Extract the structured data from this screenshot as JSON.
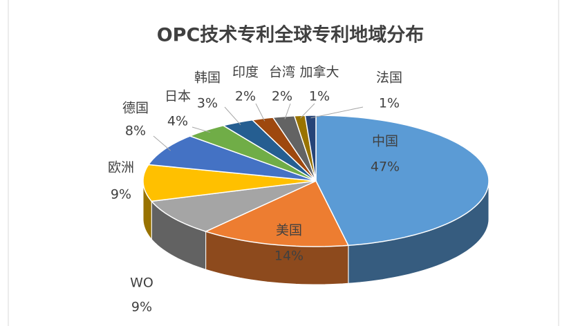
{
  "chart_data": {
    "type": "pie3d",
    "title": "OPC技术专利全球专利地域分布",
    "categories": [
      "中国",
      "美国",
      "WO",
      "欧洲",
      "德国",
      "日本",
      "韩国",
      "印度",
      "台湾",
      "加拿大",
      "法国"
    ],
    "values": [
      47,
      14,
      9,
      9,
      8,
      4,
      3,
      2,
      2,
      1,
      1
    ],
    "value_labels": [
      "47%",
      "14%",
      "9%",
      "9%",
      "8%",
      "4%",
      "3%",
      "2%",
      "2%",
      "1%",
      "1%"
    ],
    "colors": [
      "#5b9bd5",
      "#ed7d31",
      "#a5a5a5",
      "#ffc000",
      "#4472c4",
      "#70ad47",
      "#255e91",
      "#9e480e",
      "#636363",
      "#997300",
      "#264478"
    ]
  }
}
